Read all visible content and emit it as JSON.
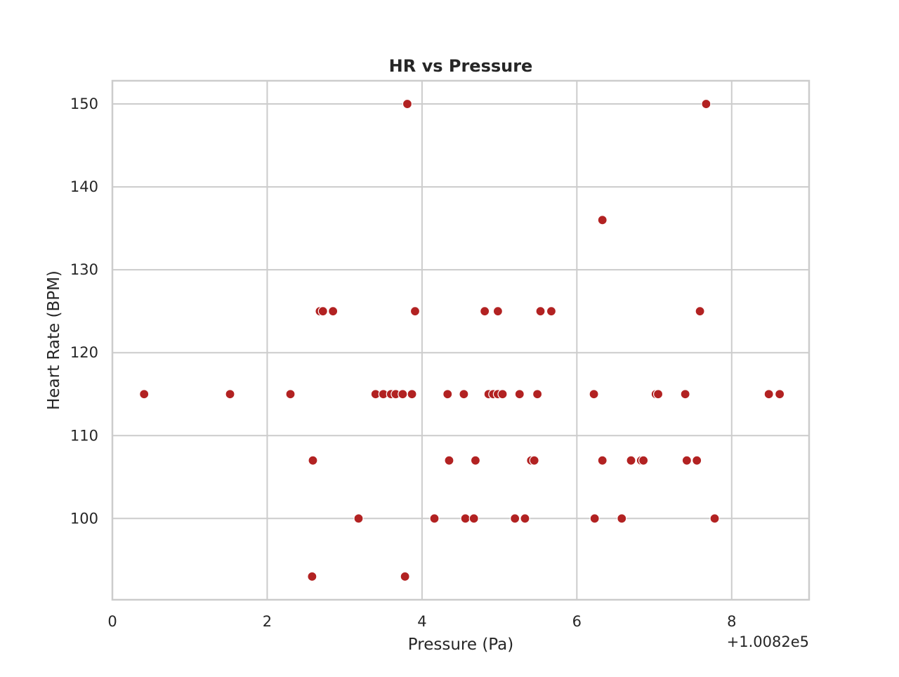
{
  "chart_data": {
    "type": "scatter",
    "title": "HR vs Pressure",
    "xlabel": "Pressure (Pa)",
    "ylabel": "Heart Rate (BPM)",
    "x_offset_label": "+1.0082e5",
    "x_offset": 100820,
    "xlim": [
      100820,
      100829
    ],
    "ylim": [
      90.2,
      152.8
    ],
    "xticks": [
      100820,
      100822,
      100824,
      100826,
      100828
    ],
    "xtick_labels": [
      "0",
      "2",
      "4",
      "6",
      "8"
    ],
    "yticks": [
      100,
      110,
      120,
      130,
      140,
      150
    ],
    "ytick_labels": [
      "100",
      "110",
      "120",
      "130",
      "140",
      "150"
    ],
    "grid": true,
    "legend": "none",
    "marker_color": "#b22222",
    "marker_edge_color": "#ffffff",
    "series": [
      {
        "points": [
          [
            100820.41,
            115
          ],
          [
            100821.52,
            115
          ],
          [
            100822.3,
            115
          ],
          [
            100823.4,
            115
          ],
          [
            100823.5,
            115
          ],
          [
            100823.6,
            115
          ],
          [
            100823.66,
            115
          ],
          [
            100823.75,
            115
          ],
          [
            100823.87,
            115
          ],
          [
            100824.33,
            115
          ],
          [
            100824.54,
            115
          ],
          [
            100824.86,
            115
          ],
          [
            100824.92,
            115
          ],
          [
            100824.98,
            115
          ],
          [
            100825.04,
            115
          ],
          [
            100825.26,
            115
          ],
          [
            100825.49,
            115
          ],
          [
            100826.22,
            115
          ],
          [
            100827.02,
            115
          ],
          [
            100827.05,
            115
          ],
          [
            100827.4,
            115
          ],
          [
            100828.48,
            115
          ],
          [
            100828.62,
            115
          ],
          [
            100822.68,
            125
          ],
          [
            100822.72,
            125
          ],
          [
            100822.85,
            125
          ],
          [
            100823.91,
            125
          ],
          [
            100824.81,
            125
          ],
          [
            100824.98,
            125
          ],
          [
            100825.53,
            125
          ],
          [
            100825.67,
            125
          ],
          [
            100827.59,
            125
          ],
          [
            100822.59,
            107
          ],
          [
            100824.35,
            107
          ],
          [
            100824.69,
            107
          ],
          [
            100825.41,
            107
          ],
          [
            100825.45,
            107
          ],
          [
            100826.33,
            107
          ],
          [
            100826.7,
            107
          ],
          [
            100826.83,
            107
          ],
          [
            100826.86,
            107
          ],
          [
            100827.42,
            107
          ],
          [
            100827.55,
            107
          ],
          [
            100823.18,
            100
          ],
          [
            100824.16,
            100
          ],
          [
            100824.56,
            100
          ],
          [
            100824.67,
            100
          ],
          [
            100825.2,
            100
          ],
          [
            100825.33,
            100
          ],
          [
            100826.23,
            100
          ],
          [
            100826.58,
            100
          ],
          [
            100827.78,
            100
          ],
          [
            100822.58,
            93
          ],
          [
            100823.78,
            93
          ],
          [
            100823.81,
            150
          ],
          [
            100827.67,
            150
          ],
          [
            100826.33,
            136
          ]
        ]
      }
    ]
  }
}
